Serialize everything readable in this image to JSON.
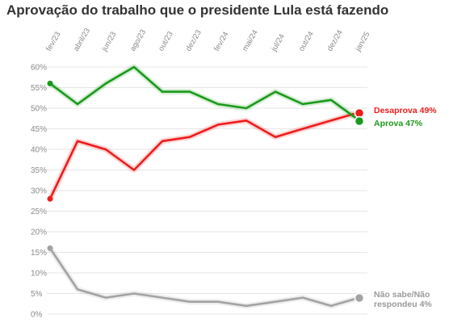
{
  "title": "Aprovação do trabalho que o presidente Lula está fazendo",
  "chart_data": {
    "type": "line",
    "title": "Aprovação do trabalho que o presidente Lula está fazendo",
    "x_tick_labels": [
      "fev/23",
      "abril/23",
      "jun/23",
      "ago/23",
      "out/23",
      "dez/23",
      "fev/24",
      "mai/24",
      "jul/24",
      "out/24",
      "dez/24",
      "jan/25"
    ],
    "y_tick_labels": [
      "0%",
      "5%",
      "10%",
      "15%",
      "20%",
      "25%",
      "30%",
      "35%",
      "40%",
      "45%",
      "50%",
      "55%",
      "60%"
    ],
    "ylim": [
      0,
      60
    ],
    "y_unit": "%",
    "grid": true,
    "legend": "end-of-line labels (right)",
    "series": [
      {
        "name": "Aprova",
        "end_label": "Aprova 47%",
        "color": "#1a9a1a",
        "values": [
          56,
          51,
          56,
          60,
          54,
          54,
          51,
          50,
          54,
          51,
          52,
          47
        ]
      },
      {
        "name": "Desaprova",
        "end_label": "Desaprova 49%",
        "color": "#ee1c1c",
        "values": [
          28,
          42,
          40,
          35,
          42,
          43,
          46,
          47,
          43,
          45,
          47,
          49
        ]
      },
      {
        "name": "Não sabe/Não respondeu",
        "end_label": [
          "Não sabe/Não",
          "respondeu 4%"
        ],
        "color": "#a3a3a3",
        "values": [
          16,
          6,
          4,
          5,
          4,
          3,
          3,
          2,
          3,
          4,
          2,
          4
        ]
      }
    ]
  }
}
